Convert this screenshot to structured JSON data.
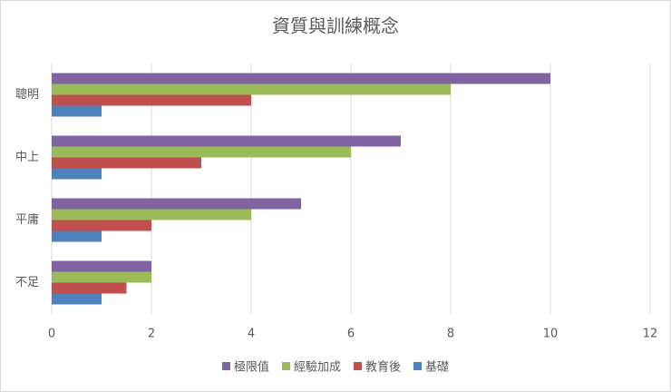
{
  "chart_data": {
    "type": "hbar",
    "title": "資質與訓練概念",
    "categories": [
      "聰明",
      "中上",
      "平庸",
      "不足"
    ],
    "series": [
      {
        "name": "極限值",
        "color": "#8064a2",
        "values": [
          10,
          7,
          5,
          2
        ]
      },
      {
        "name": "經驗加成",
        "color": "#9bbb59",
        "values": [
          8,
          6,
          4,
          2
        ]
      },
      {
        "name": "教育後",
        "color": "#c0504d",
        "values": [
          4,
          3,
          2,
          1.5
        ]
      },
      {
        "name": "基礎",
        "color": "#4f81bd",
        "values": [
          1,
          1,
          1,
          1
        ]
      }
    ],
    "xlim": [
      0,
      12
    ],
    "xticks": [
      0,
      2,
      4,
      6,
      8,
      10,
      12
    ],
    "grid": true,
    "legend": "bottom"
  }
}
